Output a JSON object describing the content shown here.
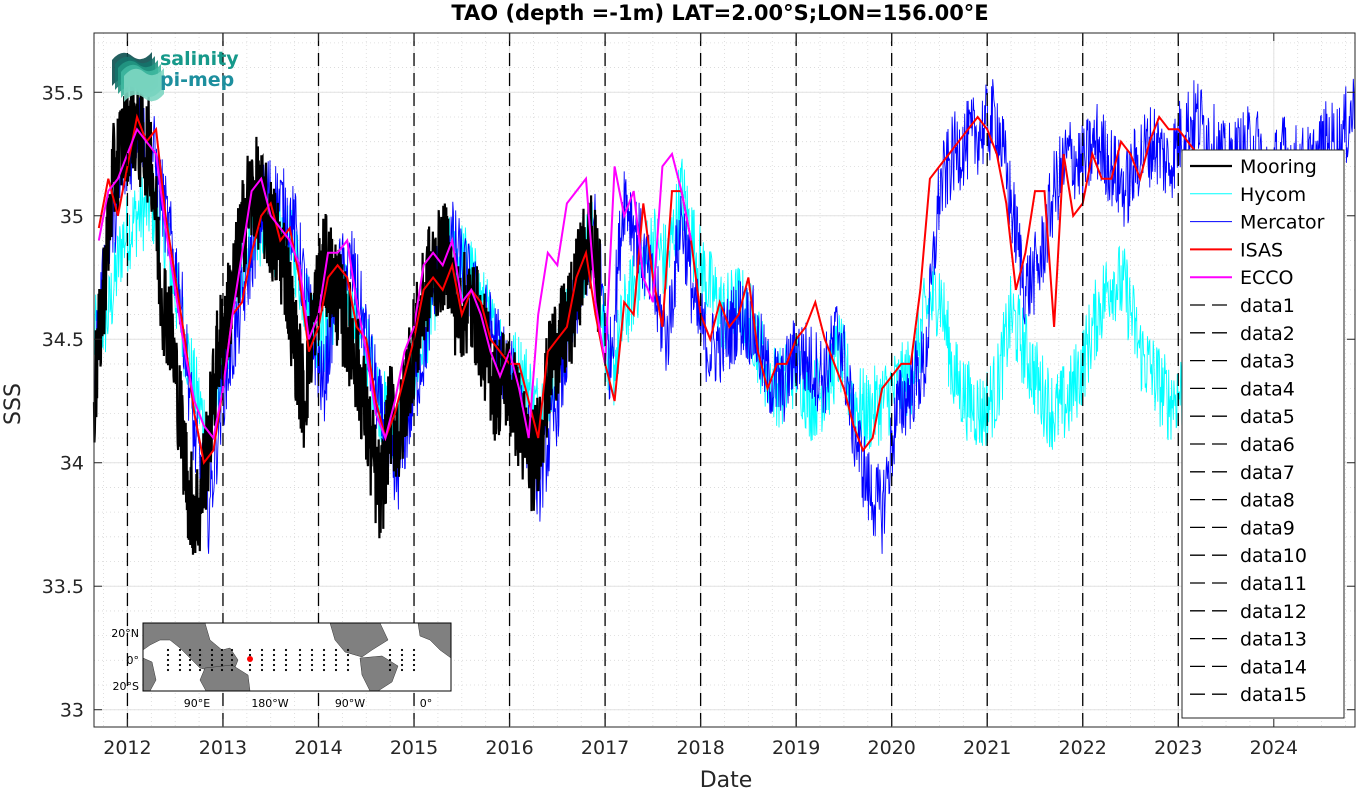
{
  "chart_data": {
    "type": "line",
    "title": "TAO (depth =-1m) LAT=2.00°S;LON=156.00°E",
    "xlabel": "Date",
    "ylabel": "SSS",
    "xlim": [
      2011.65,
      2024.85
    ],
    "ylim": [
      32.93,
      35.74
    ],
    "x_ticks": [
      2012,
      2013,
      2014,
      2015,
      2016,
      2017,
      2018,
      2019,
      2020,
      2021,
      2022,
      2023,
      2024
    ],
    "x_tick_labels": [
      "2012",
      "2013",
      "2014",
      "2015",
      "2016",
      "2017",
      "2018",
      "2019",
      "2020",
      "2021",
      "2022",
      "2023",
      "2024"
    ],
    "y_ticks": [
      33,
      33.5,
      34,
      34.5,
      35,
      35.5
    ],
    "y_tick_labels": [
      "33",
      "33.5",
      "34",
      "34.5",
      "35",
      "35.5"
    ],
    "grid": true,
    "legend_position": "right",
    "vertical_markers": [
      2012,
      2013,
      2014,
      2015,
      2016,
      2017,
      2018,
      2019,
      2020,
      2021,
      2022,
      2023
    ],
    "series": [
      {
        "name": "Mooring",
        "color": "#000000",
        "style": "thick-dots",
        "x": [
          2011.65,
          2011.75,
          2011.85,
          2011.95,
          2012.05,
          2012.15,
          2012.25,
          2012.35,
          2012.45,
          2012.55,
          2012.65,
          2012.75,
          2012.85,
          2012.95,
          2013.05,
          2013.15,
          2013.25,
          2013.35,
          2013.45,
          2013.55,
          2013.65,
          2013.75,
          2013.85,
          2013.95,
          2014.05,
          2014.15,
          2014.25,
          2014.35,
          2014.45,
          2014.55,
          2014.65,
          2014.75,
          2014.85,
          2014.95,
          2015.05,
          2015.15,
          2015.25,
          2015.35,
          2015.45,
          2015.55,
          2015.65,
          2015.75,
          2015.85,
          2015.95,
          2016.05,
          2016.15,
          2016.25,
          2016.35,
          2016.45,
          2016.55,
          2016.65,
          2016.75,
          2016.85,
          2016.95
        ],
        "y": [
          34.25,
          34.7,
          35.15,
          35.3,
          35.4,
          35.3,
          35.25,
          34.7,
          34.55,
          34.2,
          33.85,
          33.8,
          34.1,
          34.45,
          34.6,
          34.8,
          35.05,
          35.1,
          35.0,
          34.9,
          34.8,
          34.5,
          34.25,
          34.6,
          34.8,
          34.75,
          34.6,
          34.5,
          34.3,
          34.05,
          33.85,
          34.2,
          34.1,
          34.4,
          34.55,
          34.75,
          34.8,
          34.85,
          34.6,
          34.65,
          34.6,
          34.45,
          34.3,
          34.35,
          34.25,
          34.1,
          34.0,
          34.2,
          34.45,
          34.5,
          34.6,
          34.8,
          34.9,
          34.7
        ]
      },
      {
        "name": "Hycom",
        "color": "#00ffff",
        "style": "thin",
        "x": [
          2011.65,
          2011.8,
          2011.95,
          2012.1,
          2012.25,
          2012.4,
          2012.55,
          2012.7,
          2012.85,
          2013.0,
          2013.15,
          2013.3,
          2013.45,
          2013.6,
          2013.75,
          2013.9,
          2014.05,
          2014.2,
          2014.35,
          2014.5,
          2014.65,
          2014.8,
          2014.95,
          2015.1,
          2015.25,
          2015.4,
          2015.55,
          2015.7,
          2015.85,
          2016.0,
          2016.15,
          2016.3,
          2016.45,
          2016.6,
          2016.75,
          2016.9,
          2017.05,
          2017.2,
          2017.35,
          2017.5,
          2017.65,
          2017.8,
          2017.95,
          2018.1,
          2018.25,
          2018.4,
          2018.55,
          2018.7,
          2018.85,
          2019.0,
          2019.15,
          2019.3,
          2019.45,
          2019.6,
          2019.75,
          2019.9,
          2020.05,
          2020.2,
          2020.35,
          2020.5,
          2020.65,
          2020.8,
          2020.95,
          2021.1,
          2021.25,
          2021.4,
          2021.55,
          2021.7,
          2021.85,
          2022.0,
          2022.15,
          2022.3,
          2022.45,
          2022.6,
          2022.75,
          2022.9,
          2023.05,
          2023.2
        ],
        "y": [
          34.5,
          34.6,
          34.9,
          35.0,
          35.05,
          34.9,
          34.6,
          34.3,
          34.1,
          34.4,
          34.7,
          34.95,
          34.95,
          34.9,
          34.85,
          34.6,
          34.5,
          34.7,
          34.6,
          34.45,
          34.25,
          34.1,
          34.3,
          34.5,
          34.75,
          34.85,
          34.8,
          34.65,
          34.5,
          34.4,
          34.35,
          34.2,
          34.35,
          34.55,
          34.8,
          34.95,
          34.3,
          34.6,
          34.75,
          34.9,
          34.8,
          35.1,
          34.85,
          34.7,
          34.6,
          34.65,
          34.55,
          34.35,
          34.3,
          34.4,
          34.25,
          34.3,
          34.45,
          34.25,
          34.2,
          34.25,
          34.3,
          34.35,
          34.6,
          34.7,
          34.35,
          34.25,
          34.2,
          34.3,
          34.6,
          34.45,
          34.3,
          34.2,
          34.25,
          34.4,
          34.6,
          34.75,
          34.7,
          34.45,
          34.35,
          34.25,
          34.3,
          34.5
        ]
      },
      {
        "name": "Mercator",
        "color": "#0000ff",
        "style": "thin",
        "x": [
          2011.65,
          2011.8,
          2011.95,
          2012.1,
          2012.25,
          2012.4,
          2012.55,
          2012.7,
          2012.85,
          2013.0,
          2013.15,
          2013.3,
          2013.45,
          2013.6,
          2013.75,
          2013.9,
          2014.05,
          2014.2,
          2014.35,
          2014.5,
          2014.65,
          2014.8,
          2014.95,
          2015.1,
          2015.25,
          2015.4,
          2015.55,
          2015.7,
          2015.85,
          2016.0,
          2016.15,
          2016.3,
          2016.45,
          2016.6,
          2016.75,
          2016.9,
          2017.05,
          2017.2,
          2017.35,
          2017.5,
          2017.65,
          2017.8,
          2017.95,
          2018.1,
          2018.25,
          2018.4,
          2018.55,
          2018.7,
          2018.85,
          2019.0,
          2019.15,
          2019.3,
          2019.45,
          2019.6,
          2019.75,
          2019.9,
          2020.05,
          2020.2,
          2020.35,
          2020.5,
          2020.65,
          2020.8,
          2020.95,
          2021.1,
          2021.25,
          2021.4,
          2021.55,
          2021.7,
          2021.85,
          2022.0,
          2022.15,
          2022.3,
          2022.45,
          2022.6,
          2022.75,
          2022.9,
          2023.05,
          2023.2,
          2023.35,
          2023.5,
          2023.65,
          2023.8,
          2023.95,
          2024.1,
          2024.25,
          2024.4,
          2024.55,
          2024.7,
          2024.85
        ],
        "y": [
          34.4,
          34.9,
          35.15,
          35.35,
          35.3,
          35.0,
          34.7,
          34.1,
          33.8,
          34.3,
          34.55,
          34.85,
          35.1,
          35.05,
          34.95,
          34.6,
          34.3,
          34.75,
          34.8,
          34.5,
          34.2,
          33.9,
          34.2,
          34.45,
          34.8,
          34.9,
          34.75,
          34.6,
          34.5,
          34.35,
          34.2,
          33.9,
          34.15,
          34.45,
          34.75,
          34.95,
          34.4,
          35.1,
          34.9,
          34.7,
          34.5,
          35.0,
          34.6,
          34.45,
          34.5,
          34.6,
          34.55,
          34.35,
          34.3,
          34.45,
          34.4,
          34.35,
          34.55,
          34.15,
          33.9,
          33.8,
          34.2,
          34.3,
          34.4,
          35.1,
          35.25,
          35.3,
          35.35,
          35.4,
          35.05,
          34.7,
          34.8,
          35.1,
          35.25,
          35.2,
          35.3,
          35.2,
          35.1,
          35.25,
          35.3,
          35.2,
          35.35,
          35.4,
          35.3,
          35.2,
          35.25,
          35.3,
          35.15,
          35.25,
          35.2,
          35.2,
          35.3,
          35.3,
          35.45
        ]
      },
      {
        "name": "ISAS",
        "color": "#ff0000",
        "style": "monthly",
        "x": [
          2011.7,
          2011.8,
          2011.9,
          2012.0,
          2012.1,
          2012.2,
          2012.3,
          2012.4,
          2012.5,
          2012.6,
          2012.7,
          2012.8,
          2012.9,
          2013.0,
          2013.1,
          2013.2,
          2013.3,
          2013.4,
          2013.5,
          2013.6,
          2013.7,
          2013.8,
          2013.9,
          2014.0,
          2014.1,
          2014.2,
          2014.3,
          2014.4,
          2014.5,
          2014.6,
          2014.7,
          2014.8,
          2014.9,
          2015.0,
          2015.1,
          2015.2,
          2015.3,
          2015.4,
          2015.5,
          2015.6,
          2015.7,
          2015.8,
          2015.9,
          2016.0,
          2016.1,
          2016.2,
          2016.3,
          2016.4,
          2016.5,
          2016.6,
          2016.7,
          2016.8,
          2016.9,
          2017.0,
          2017.1,
          2017.2,
          2017.3,
          2017.4,
          2017.5,
          2017.6,
          2017.7,
          2017.8,
          2017.9,
          2018.0,
          2018.1,
          2018.2,
          2018.3,
          2018.4,
          2018.5,
          2018.6,
          2018.7,
          2018.8,
          2018.9,
          2019.0,
          2019.1,
          2019.2,
          2019.3,
          2019.4,
          2019.5,
          2019.6,
          2019.7,
          2019.8,
          2019.9,
          2020.0,
          2020.1,
          2020.2,
          2020.3,
          2020.4,
          2020.5,
          2020.6,
          2020.7,
          2020.8,
          2020.9,
          2021.0,
          2021.1,
          2021.2,
          2021.3,
          2021.4,
          2021.5,
          2021.6,
          2021.7,
          2021.8,
          2021.9,
          2022.0,
          2022.1,
          2022.2,
          2022.3,
          2022.4,
          2022.5,
          2022.6,
          2022.7,
          2022.8,
          2022.9,
          2023.0,
          2023.1,
          2023.2
        ],
        "y": [
          34.95,
          35.15,
          35.0,
          35.2,
          35.4,
          35.3,
          35.35,
          35.0,
          34.75,
          34.5,
          34.2,
          34.0,
          34.05,
          34.3,
          34.6,
          34.65,
          34.85,
          35.0,
          35.05,
          34.9,
          34.95,
          34.75,
          34.45,
          34.55,
          34.75,
          34.8,
          34.75,
          34.55,
          34.5,
          34.25,
          34.1,
          34.2,
          34.35,
          34.5,
          34.7,
          34.75,
          34.7,
          34.8,
          34.6,
          34.7,
          34.65,
          34.5,
          34.45,
          34.4,
          34.4,
          34.25,
          34.1,
          34.45,
          34.5,
          34.55,
          34.75,
          34.85,
          34.6,
          34.4,
          34.25,
          34.65,
          34.6,
          35.05,
          34.75,
          34.55,
          35.1,
          35.1,
          34.9,
          34.6,
          34.5,
          34.65,
          34.55,
          34.6,
          34.75,
          34.45,
          34.3,
          34.4,
          34.4,
          34.5,
          34.55,
          34.65,
          34.5,
          34.4,
          34.3,
          34.15,
          34.05,
          34.1,
          34.3,
          34.35,
          34.4,
          34.4,
          34.7,
          35.15,
          35.2,
          35.25,
          35.3,
          35.35,
          35.4,
          35.35,
          35.25,
          35.05,
          34.7,
          34.85,
          35.1,
          35.1,
          34.55,
          35.25,
          35.0,
          35.05,
          35.25,
          35.15,
          35.15,
          35.3,
          35.25,
          35.15,
          35.3,
          35.4,
          35.35,
          35.35,
          35.3,
          35.25
        ]
      },
      {
        "name": "ECCO",
        "color": "#ff00ff",
        "style": "monthly",
        "x": [
          2011.7,
          2011.8,
          2011.9,
          2012.0,
          2012.1,
          2012.2,
          2012.3,
          2012.4,
          2012.5,
          2012.6,
          2012.7,
          2012.8,
          2012.9,
          2013.0,
          2013.1,
          2013.2,
          2013.3,
          2013.4,
          2013.5,
          2013.6,
          2013.7,
          2013.8,
          2013.9,
          2014.0,
          2014.1,
          2014.2,
          2014.3,
          2014.4,
          2014.5,
          2014.6,
          2014.7,
          2014.8,
          2014.9,
          2015.0,
          2015.1,
          2015.2,
          2015.3,
          2015.4,
          2015.5,
          2015.6,
          2015.7,
          2015.8,
          2015.9,
          2016.0,
          2016.1,
          2016.2,
          2016.3,
          2016.4,
          2016.5,
          2016.6,
          2016.7,
          2016.8,
          2016.9,
          2017.0,
          2017.1,
          2017.2,
          2017.3,
          2017.4,
          2017.5,
          2017.6,
          2017.7,
          2017.8,
          2017.9
        ],
        "y": [
          34.9,
          35.1,
          35.15,
          35.25,
          35.35,
          35.3,
          35.25,
          34.95,
          34.7,
          34.45,
          34.25,
          34.15,
          34.1,
          34.3,
          34.6,
          34.85,
          35.1,
          35.15,
          35.0,
          34.95,
          34.9,
          34.8,
          34.5,
          34.6,
          34.85,
          34.85,
          34.9,
          34.65,
          34.45,
          34.2,
          34.1,
          34.25,
          34.45,
          34.55,
          34.8,
          34.85,
          34.8,
          34.9,
          34.65,
          34.7,
          34.6,
          34.45,
          34.35,
          34.45,
          34.3,
          34.1,
          34.6,
          34.85,
          34.8,
          35.05,
          35.1,
          35.15,
          34.65,
          34.4,
          35.2,
          35.0,
          35.1,
          34.75,
          34.65,
          35.2,
          35.25,
          35.1,
          34.9
        ]
      }
    ],
    "legend": [
      "Mooring",
      "Hycom",
      "Mercator",
      "ISAS",
      "ECCO",
      "data1",
      "data2",
      "data3",
      "data4",
      "data5",
      "data6",
      "data7",
      "data8",
      "data9",
      "data10",
      "data11",
      "data12",
      "data13",
      "data14",
      "data15"
    ],
    "inset_map": {
      "lat_labels": [
        "20°N",
        "0°",
        "20°S"
      ],
      "lon_labels": [
        "90°E",
        "180°W",
        "90°W",
        "0°"
      ],
      "marker_color": "#ff0000"
    },
    "logo": {
      "line1": "salinity",
      "line2": "pi-mep"
    }
  }
}
